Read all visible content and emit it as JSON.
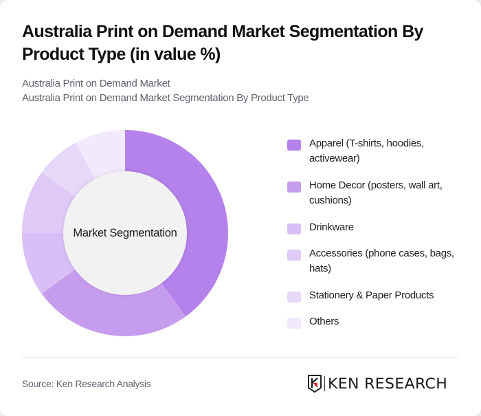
{
  "header": {
    "title": "Australia Print on Demand Market Segmentation By Product Type (in value %)",
    "subtitle_line1": "Australia Print on Demand Market",
    "subtitle_line2": "Australia Print on Demand Market Segmentation By Product Type"
  },
  "donut": {
    "center_label": "Market Segmentation"
  },
  "legend": {
    "items": [
      {
        "label": "Apparel (T-shirts, hoodies, activewear)",
        "color": "#B482EA"
      },
      {
        "label": "Home Decor (posters, wall art, cushions)",
        "color": "#C69DEE"
      },
      {
        "label": "Drinkware",
        "color": "#D9BFF5"
      },
      {
        "label": "Accessories (phone cases, bags, hats)",
        "color": "#DFC9F6"
      },
      {
        "label": "Stationery & Paper Products",
        "color": "#E7D7F9"
      },
      {
        "label": "Others",
        "color": "#F2EAFC"
      }
    ]
  },
  "footer": {
    "source": "Source: Ken Research Analysis",
    "logo_text": "KEN RESEARCH"
  },
  "chart_data": {
    "type": "pie",
    "subtype": "donut",
    "title": "Australia Print on Demand Market Segmentation By Product Type (in value %)",
    "subtitle": "Australia Print on Demand Market Segmentation By Product Type",
    "center_label": "Market Segmentation",
    "categories": [
      "Apparel (T-shirts, hoodies, activewear)",
      "Home Decor (posters, wall art, cushions)",
      "Drinkware",
      "Accessories (phone cases, bags, hats)",
      "Stationery & Paper Products",
      "Others"
    ],
    "values": [
      40,
      25,
      10,
      10,
      7,
      8
    ],
    "colors": [
      "#B482EA",
      "#C69DEE",
      "#D9BFF5",
      "#DFC9F6",
      "#E7D7F9",
      "#F2EAFC"
    ],
    "unit": "%",
    "legend_position": "right",
    "data_labels_shown": false,
    "start_angle_deg": 0,
    "direction": "clockwise"
  }
}
